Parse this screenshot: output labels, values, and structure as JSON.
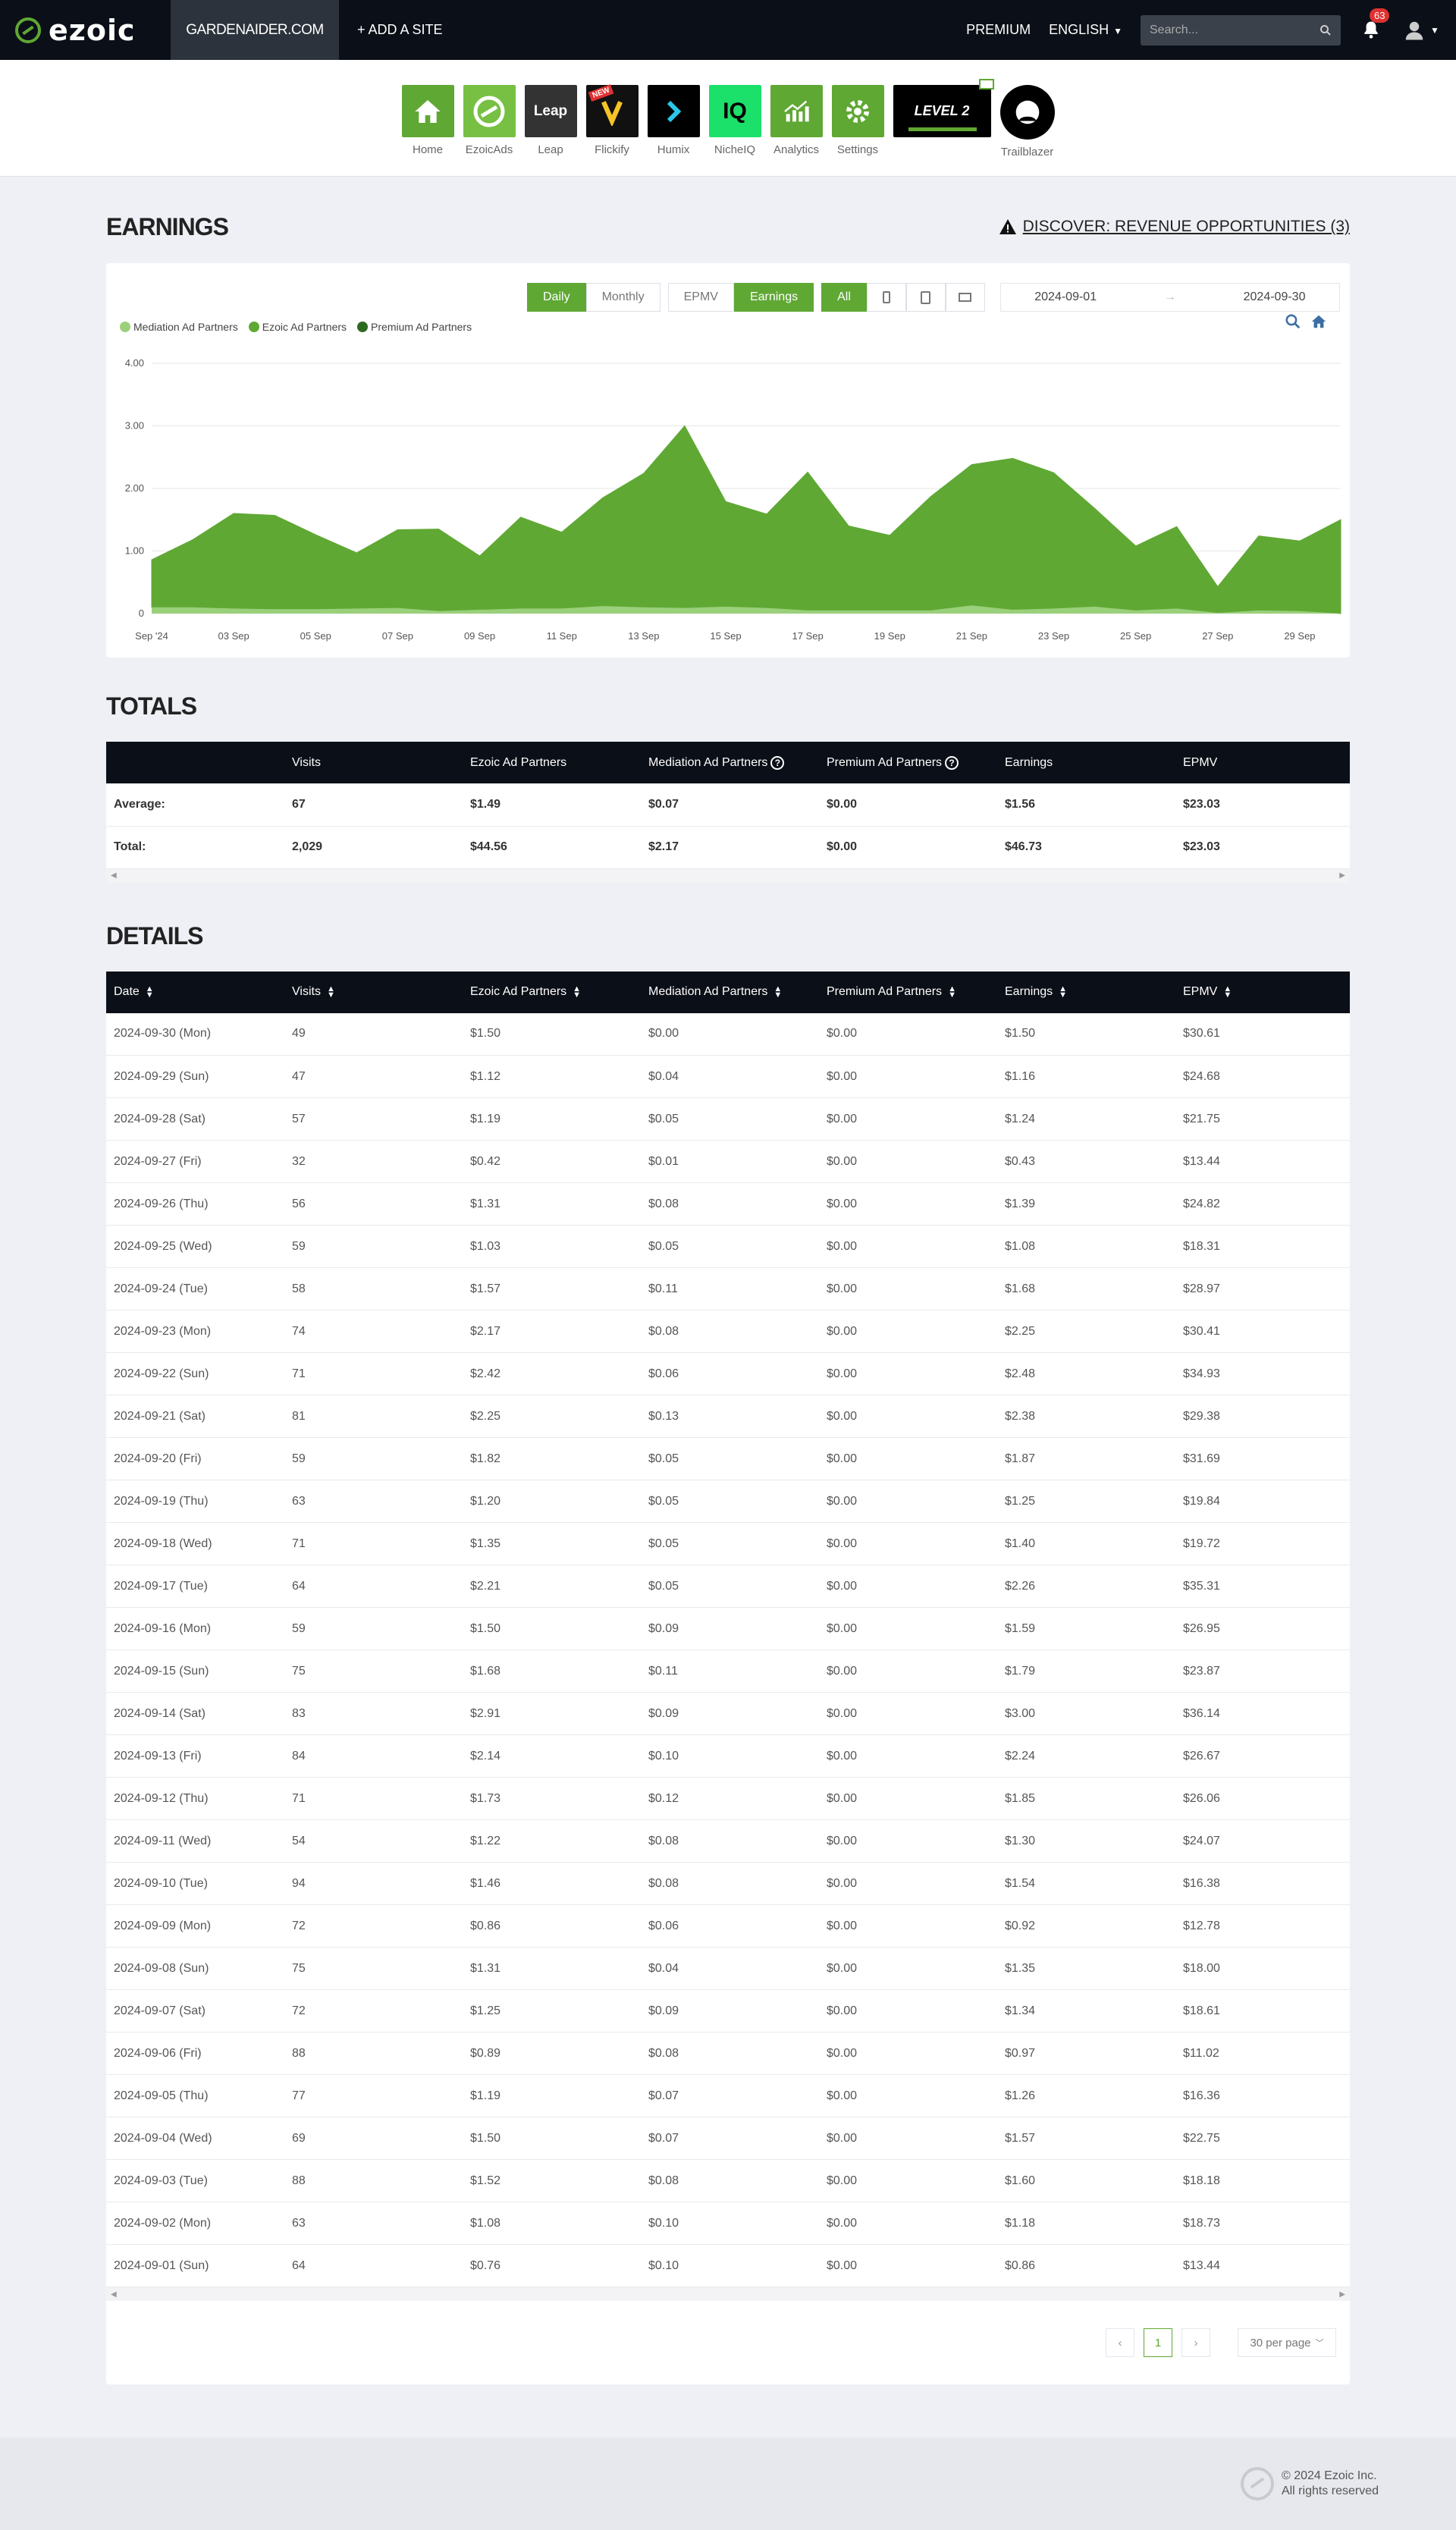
{
  "nav": {
    "logo": "ezoic",
    "site": "GARDENAIDER.COM",
    "add_site": "+ ADD A SITE",
    "premium": "PREMIUM",
    "language": "ENGLISH",
    "search_placeholder": "Search...",
    "notifications": "63"
  },
  "apps": [
    {
      "label": "Home",
      "color": "#5fa834",
      "icon": "home-icon"
    },
    {
      "label": "EzoicAds",
      "color": "#77c043",
      "icon": "ezoic-ads-icon"
    },
    {
      "label": "Leap",
      "color": "#333333",
      "icon": "leap-icon",
      "text": "Leap"
    },
    {
      "label": "Flickify",
      "color": "#111111",
      "icon": "flickify-icon",
      "badge": "NEW"
    },
    {
      "label": "Humix",
      "color": "#000000",
      "icon": "humix-icon"
    },
    {
      "label": "NicheIQ",
      "color": "#1be06a",
      "icon": "nicheiq-icon",
      "text": "IQ"
    },
    {
      "label": "Analytics",
      "color": "#5fa834",
      "icon": "analytics-icon"
    },
    {
      "label": "Settings",
      "color": "#5fa834",
      "icon": "settings-icon"
    },
    {
      "label": "",
      "color": "#000000",
      "icon": "level-icon",
      "text": "LEVEL 2"
    },
    {
      "label": "Trailblazer",
      "color": "#000000",
      "icon": "trailblazer-icon"
    }
  ],
  "earnings": {
    "title": "EARNINGS",
    "discover": "DISCOVER: REVENUE OPPORTUNITIES (3)",
    "controls": {
      "daily": "Daily",
      "monthly": "Monthly",
      "epmv": "EPMV",
      "earnings": "Earnings",
      "all": "All",
      "date_from": "2024-09-01",
      "date_sep": "→",
      "date_to": "2024-09-30"
    },
    "legend": [
      {
        "name": "Mediation Ad Partners",
        "color": "#9ad07a"
      },
      {
        "name": "Ezoic Ad Partners",
        "color": "#5fa834"
      },
      {
        "name": "Premium Ad Partners",
        "color": "#2d6a1e"
      }
    ]
  },
  "chart_data": {
    "type": "area",
    "x": [
      "Sep '24",
      "02 Sep",
      "03 Sep",
      "04 Sep",
      "05 Sep",
      "06 Sep",
      "07 Sep",
      "08 Sep",
      "09 Sep",
      "10 Sep",
      "11 Sep",
      "12 Sep",
      "13 Sep",
      "14 Sep",
      "15 Sep",
      "16 Sep",
      "17 Sep",
      "18 Sep",
      "19 Sep",
      "20 Sep",
      "21 Sep",
      "22 Sep",
      "23 Sep",
      "24 Sep",
      "25 Sep",
      "26 Sep",
      "27 Sep",
      "28 Sep",
      "29 Sep",
      "30 Sep"
    ],
    "x_tick_labels": [
      "Sep '24",
      "03 Sep",
      "05 Sep",
      "07 Sep",
      "09 Sep",
      "11 Sep",
      "13 Sep",
      "15 Sep",
      "17 Sep",
      "19 Sep",
      "21 Sep",
      "23 Sep",
      "25 Sep",
      "27 Sep",
      "29 Sep"
    ],
    "series": [
      {
        "name": "Mediation Ad Partners",
        "values": [
          0.1,
          0.1,
          0.08,
          0.07,
          0.07,
          0.08,
          0.09,
          0.04,
          0.06,
          0.08,
          0.08,
          0.12,
          0.1,
          0.09,
          0.11,
          0.09,
          0.05,
          0.05,
          0.05,
          0.05,
          0.13,
          0.06,
          0.08,
          0.11,
          0.05,
          0.08,
          0.01,
          0.05,
          0.04,
          0.0
        ]
      },
      {
        "name": "Ezoic Ad Partners",
        "values": [
          0.76,
          1.08,
          1.52,
          1.5,
          1.19,
          0.89,
          1.25,
          1.31,
          0.86,
          1.46,
          1.22,
          1.73,
          2.14,
          2.91,
          1.68,
          1.5,
          2.21,
          1.35,
          1.2,
          1.82,
          2.25,
          2.42,
          2.17,
          1.57,
          1.03,
          1.31,
          0.42,
          1.19,
          1.12,
          1.5
        ]
      },
      {
        "name": "Premium Ad Partners",
        "values": [
          0,
          0,
          0,
          0,
          0,
          0,
          0,
          0,
          0,
          0,
          0,
          0,
          0,
          0,
          0,
          0,
          0,
          0,
          0,
          0,
          0,
          0,
          0,
          0,
          0,
          0,
          0,
          0,
          0,
          0
        ]
      }
    ],
    "y_ticks": [
      "0",
      "1.00",
      "2.00",
      "3.00",
      "4.00"
    ],
    "ylim": [
      0,
      4
    ]
  },
  "totals": {
    "title": "TOTALS",
    "headers": [
      "",
      "Visits",
      "Ezoic Ad Partners",
      "Mediation Ad Partners",
      "Premium Ad Partners",
      "Earnings",
      "EPMV"
    ],
    "rows": [
      [
        "Average:",
        "67",
        "$1.49",
        "$0.07",
        "$0.00",
        "$1.56",
        "$23.03"
      ],
      [
        "Total:",
        "2,029",
        "$44.56",
        "$2.17",
        "$0.00",
        "$46.73",
        "$23.03"
      ]
    ]
  },
  "details": {
    "title": "DETAILS",
    "headers": [
      "Date",
      "Visits",
      "Ezoic Ad Partners",
      "Mediation Ad Partners",
      "Premium Ad Partners",
      "Earnings",
      "EPMV"
    ],
    "rows": [
      [
        "2024-09-30 (Mon)",
        "49",
        "$1.50",
        "$0.00",
        "$0.00",
        "$1.50",
        "$30.61"
      ],
      [
        "2024-09-29 (Sun)",
        "47",
        "$1.12",
        "$0.04",
        "$0.00",
        "$1.16",
        "$24.68"
      ],
      [
        "2024-09-28 (Sat)",
        "57",
        "$1.19",
        "$0.05",
        "$0.00",
        "$1.24",
        "$21.75"
      ],
      [
        "2024-09-27 (Fri)",
        "32",
        "$0.42",
        "$0.01",
        "$0.00",
        "$0.43",
        "$13.44"
      ],
      [
        "2024-09-26 (Thu)",
        "56",
        "$1.31",
        "$0.08",
        "$0.00",
        "$1.39",
        "$24.82"
      ],
      [
        "2024-09-25 (Wed)",
        "59",
        "$1.03",
        "$0.05",
        "$0.00",
        "$1.08",
        "$18.31"
      ],
      [
        "2024-09-24 (Tue)",
        "58",
        "$1.57",
        "$0.11",
        "$0.00",
        "$1.68",
        "$28.97"
      ],
      [
        "2024-09-23 (Mon)",
        "74",
        "$2.17",
        "$0.08",
        "$0.00",
        "$2.25",
        "$30.41"
      ],
      [
        "2024-09-22 (Sun)",
        "71",
        "$2.42",
        "$0.06",
        "$0.00",
        "$2.48",
        "$34.93"
      ],
      [
        "2024-09-21 (Sat)",
        "81",
        "$2.25",
        "$0.13",
        "$0.00",
        "$2.38",
        "$29.38"
      ],
      [
        "2024-09-20 (Fri)",
        "59",
        "$1.82",
        "$0.05",
        "$0.00",
        "$1.87",
        "$31.69"
      ],
      [
        "2024-09-19 (Thu)",
        "63",
        "$1.20",
        "$0.05",
        "$0.00",
        "$1.25",
        "$19.84"
      ],
      [
        "2024-09-18 (Wed)",
        "71",
        "$1.35",
        "$0.05",
        "$0.00",
        "$1.40",
        "$19.72"
      ],
      [
        "2024-09-17 (Tue)",
        "64",
        "$2.21",
        "$0.05",
        "$0.00",
        "$2.26",
        "$35.31"
      ],
      [
        "2024-09-16 (Mon)",
        "59",
        "$1.50",
        "$0.09",
        "$0.00",
        "$1.59",
        "$26.95"
      ],
      [
        "2024-09-15 (Sun)",
        "75",
        "$1.68",
        "$0.11",
        "$0.00",
        "$1.79",
        "$23.87"
      ],
      [
        "2024-09-14 (Sat)",
        "83",
        "$2.91",
        "$0.09",
        "$0.00",
        "$3.00",
        "$36.14"
      ],
      [
        "2024-09-13 (Fri)",
        "84",
        "$2.14",
        "$0.10",
        "$0.00",
        "$2.24",
        "$26.67"
      ],
      [
        "2024-09-12 (Thu)",
        "71",
        "$1.73",
        "$0.12",
        "$0.00",
        "$1.85",
        "$26.06"
      ],
      [
        "2024-09-11 (Wed)",
        "54",
        "$1.22",
        "$0.08",
        "$0.00",
        "$1.30",
        "$24.07"
      ],
      [
        "2024-09-10 (Tue)",
        "94",
        "$1.46",
        "$0.08",
        "$0.00",
        "$1.54",
        "$16.38"
      ],
      [
        "2024-09-09 (Mon)",
        "72",
        "$0.86",
        "$0.06",
        "$0.00",
        "$0.92",
        "$12.78"
      ],
      [
        "2024-09-08 (Sun)",
        "75",
        "$1.31",
        "$0.04",
        "$0.00",
        "$1.35",
        "$18.00"
      ],
      [
        "2024-09-07 (Sat)",
        "72",
        "$1.25",
        "$0.09",
        "$0.00",
        "$1.34",
        "$18.61"
      ],
      [
        "2024-09-06 (Fri)",
        "88",
        "$0.89",
        "$0.08",
        "$0.00",
        "$0.97",
        "$11.02"
      ],
      [
        "2024-09-05 (Thu)",
        "77",
        "$1.19",
        "$0.07",
        "$0.00",
        "$1.26",
        "$16.36"
      ],
      [
        "2024-09-04 (Wed)",
        "69",
        "$1.50",
        "$0.07",
        "$0.00",
        "$1.57",
        "$22.75"
      ],
      [
        "2024-09-03 (Tue)",
        "88",
        "$1.52",
        "$0.08",
        "$0.00",
        "$1.60",
        "$18.18"
      ],
      [
        "2024-09-02 (Mon)",
        "63",
        "$1.08",
        "$0.10",
        "$0.00",
        "$1.18",
        "$18.73"
      ],
      [
        "2024-09-01 (Sun)",
        "64",
        "$0.76",
        "$0.10",
        "$0.00",
        "$0.86",
        "$13.44"
      ]
    ],
    "pager": {
      "prev": "‹",
      "page": "1",
      "next": "›",
      "per_page": "30 per page"
    }
  },
  "footer": {
    "line1": "© 2024 Ezoic Inc.",
    "line2": "All rights reserved"
  }
}
